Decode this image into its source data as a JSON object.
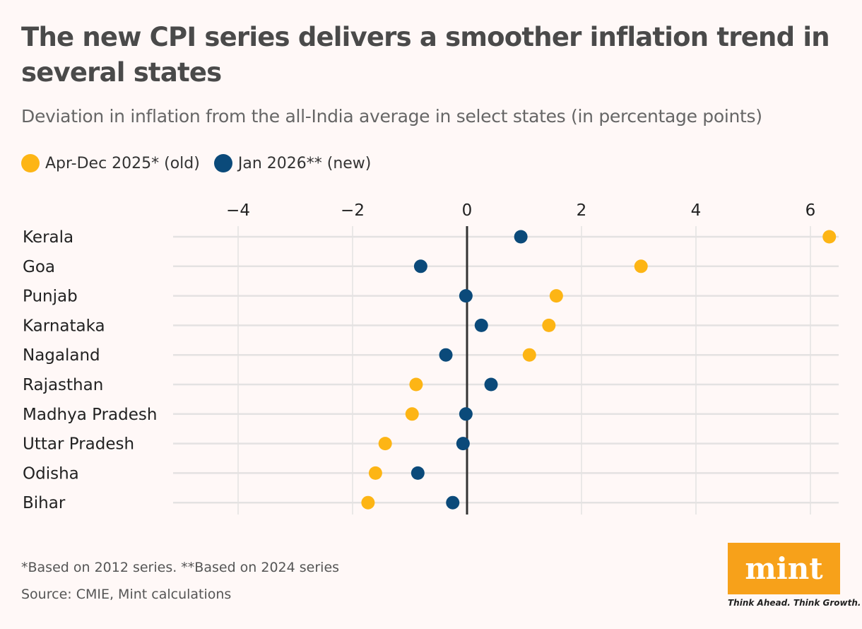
{
  "title": "The new CPI series delivers a smoother inflation trend in several states",
  "subtitle": "Deviation in inflation from the all-India average in select states (in percentage points)",
  "footnote": "*Based on 2012 series. **Based on 2024 series",
  "source": "Source: CMIE, Mint calculations",
  "logo": {
    "text": "mint",
    "tagline": "Think Ahead. Think Growth.",
    "color": "#f7a11a"
  },
  "chart_data": {
    "type": "scatter",
    "subtype": "dot-plot",
    "categories": [
      "Kerala",
      "Goa",
      "Punjab",
      "Karnataka",
      "Nagaland",
      "Rajasthan",
      "Madhya Pradesh",
      "Uttar Pradesh",
      "Odisha",
      "Bihar"
    ],
    "series": [
      {
        "name": "Apr-Dec 2025* (old)",
        "color": "#fdb515",
        "values": [
          6.33,
          3.04,
          1.56,
          1.43,
          1.09,
          -0.89,
          -0.96,
          -1.43,
          -1.6,
          -1.73
        ]
      },
      {
        "name": "Jan 2026** (new)",
        "color": "#0b4a7a",
        "values": [
          0.94,
          -0.81,
          -0.02,
          0.25,
          -0.37,
          0.42,
          -0.02,
          -0.07,
          -0.86,
          -0.25
        ]
      }
    ],
    "xticks": [
      "−4",
      "−2",
      "0",
      "2",
      "4",
      "6"
    ],
    "xtick_values": [
      -4,
      -2,
      0,
      2,
      4,
      6
    ],
    "xlim": [
      -5.1,
      6.5
    ],
    "xaxis_position": "top",
    "grid": true,
    "legend_position": "top-left"
  }
}
